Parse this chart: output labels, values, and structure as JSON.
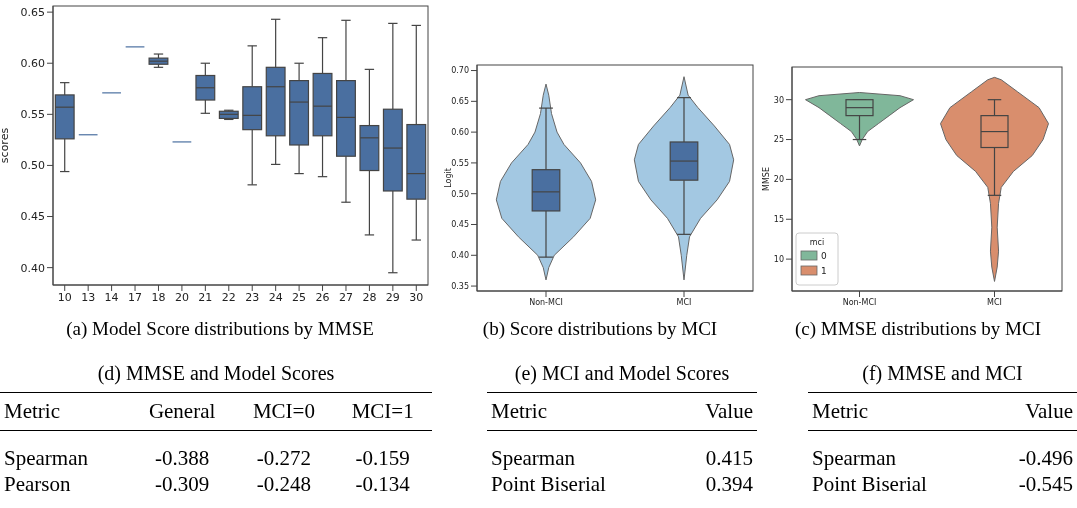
{
  "chart_data": [
    {
      "type": "box",
      "ylabel": "scores",
      "annotations": [
        "(a) Model Score distributions by MMSE"
      ],
      "categories": [
        "10",
        "13",
        "14",
        "17",
        "18",
        "20",
        "21",
        "22",
        "23",
        "24",
        "25",
        "26",
        "27",
        "28",
        "29",
        "30"
      ],
      "color": "#4a6fa0",
      "ylim": [
        0.383,
        0.656
      ],
      "yticks": [
        {
          "value": 0.4,
          "label": "0.40"
        },
        {
          "value": 0.45,
          "label": "0.45"
        },
        {
          "value": 0.5,
          "label": "0.50"
        },
        {
          "value": 0.55,
          "label": "0.55"
        },
        {
          "value": 0.6,
          "label": "0.60"
        },
        {
          "value": 0.65,
          "label": "0.65"
        }
      ],
      "boxes": [
        {
          "low": 0.494,
          "q1": 0.526,
          "median": 0.557,
          "q3": 0.569,
          "high": 0.581
        },
        {
          "low": 0.53,
          "q1": 0.53,
          "median": 0.53,
          "q3": 0.53,
          "high": 0.53
        },
        {
          "low": 0.571,
          "q1": 0.571,
          "median": 0.571,
          "q3": 0.571,
          "high": 0.571
        },
        {
          "low": 0.616,
          "q1": 0.616,
          "median": 0.616,
          "q3": 0.616,
          "high": 0.616
        },
        {
          "low": 0.596,
          "q1": 0.599,
          "median": 0.602,
          "q3": 0.605,
          "high": 0.609
        },
        {
          "low": 0.523,
          "q1": 0.523,
          "median": 0.523,
          "q3": 0.523,
          "high": 0.523
        },
        {
          "low": 0.551,
          "q1": 0.564,
          "median": 0.576,
          "q3": 0.588,
          "high": 0.6
        },
        {
          "low": 0.545,
          "q1": 0.546,
          "median": 0.55,
          "q3": 0.553,
          "high": 0.554
        },
        {
          "low": 0.481,
          "q1": 0.535,
          "median": 0.549,
          "q3": 0.577,
          "high": 0.617
        },
        {
          "low": 0.501,
          "q1": 0.529,
          "median": 0.577,
          "q3": 0.596,
          "high": 0.643
        },
        {
          "low": 0.492,
          "q1": 0.52,
          "median": 0.562,
          "q3": 0.583,
          "high": 0.6
        },
        {
          "low": 0.489,
          "q1": 0.529,
          "median": 0.558,
          "q3": 0.59,
          "high": 0.625
        },
        {
          "low": 0.464,
          "q1": 0.509,
          "median": 0.547,
          "q3": 0.583,
          "high": 0.642
        },
        {
          "low": 0.432,
          "q1": 0.495,
          "median": 0.527,
          "q3": 0.539,
          "high": 0.594
        },
        {
          "low": 0.395,
          "q1": 0.475,
          "median": 0.517,
          "q3": 0.555,
          "high": 0.639
        },
        {
          "low": 0.427,
          "q1": 0.467,
          "median": 0.492,
          "q3": 0.54,
          "high": 0.637
        }
      ]
    },
    {
      "type": "box",
      "ylabel": "Logit",
      "annotations": [
        "(b) Score distributions by MCI"
      ],
      "categories": [
        "Non-MCI",
        "MCI"
      ],
      "color": "#4a6fa0",
      "ylim": [
        0.342,
        0.709
      ],
      "yticks": [
        {
          "value": 0.35,
          "label": "0.35"
        },
        {
          "value": 0.4,
          "label": "0.40"
        },
        {
          "value": 0.45,
          "label": "0.45"
        },
        {
          "value": 0.5,
          "label": "0.50"
        },
        {
          "value": 0.55,
          "label": "0.55"
        },
        {
          "value": 0.6,
          "label": "0.60"
        },
        {
          "value": 0.65,
          "label": "0.65"
        },
        {
          "value": 0.7,
          "label": "0.70"
        }
      ],
      "boxes": [
        {
          "low": 0.397,
          "q1": 0.472,
          "median": 0.503,
          "q3": 0.539,
          "high": 0.639
        },
        {
          "low": 0.434,
          "q1": 0.522,
          "median": 0.553,
          "q3": 0.584,
          "high": 0.656
        }
      ]
    },
    {
      "type": "box",
      "ylabel": "MMSE",
      "legend_title": "mci",
      "legend": "bottom left",
      "annotations": [
        "(c) MMSE distributions by MCI"
      ],
      "categories": [
        "Non-MCI",
        "MCI"
      ],
      "ylim": [
        6,
        34.1
      ],
      "yticks": [
        10,
        15,
        20,
        25,
        30
      ],
      "series": [
        {
          "name": "0",
          "color": "#80b79a",
          "boxes": [
            {
              "low": 25,
              "q1": 28,
              "median": 29,
              "q3": 30,
              "high": 30
            },
            null
          ]
        },
        {
          "name": "1",
          "color": "#d98e6d",
          "boxes": [
            null,
            {
              "low": 18,
              "q1": 24,
              "median": 26,
              "q3": 28,
              "high": 30
            }
          ]
        }
      ]
    },
    {
      "type": "other",
      "title": "(d) MMSE and Model Scores",
      "categories": [
        "Metric",
        "General",
        "MCI=0",
        "MCI=1"
      ],
      "y_categories": [
        "Spearman",
        "Pearson"
      ],
      "cell_labels": [
        [
          "-0.388",
          "-0.272",
          "-0.159"
        ],
        [
          "-0.309",
          "-0.248",
          "-0.134"
        ]
      ]
    },
    {
      "type": "other",
      "title": "(e) MCI and Model Scores",
      "categories": [
        "Metric",
        "Value"
      ],
      "y_categories": [
        "Spearman",
        "Point Biserial"
      ],
      "cell_labels": [
        [
          "0.415"
        ],
        [
          "0.394"
        ]
      ]
    },
    {
      "type": "other",
      "title": "(f) MMSE and MCI",
      "categories": [
        "Metric",
        "Value"
      ],
      "y_categories": [
        "Spearman",
        "Point Biserial"
      ],
      "cell_labels": [
        [
          "-0.496"
        ],
        [
          "-0.545"
        ]
      ]
    }
  ]
}
